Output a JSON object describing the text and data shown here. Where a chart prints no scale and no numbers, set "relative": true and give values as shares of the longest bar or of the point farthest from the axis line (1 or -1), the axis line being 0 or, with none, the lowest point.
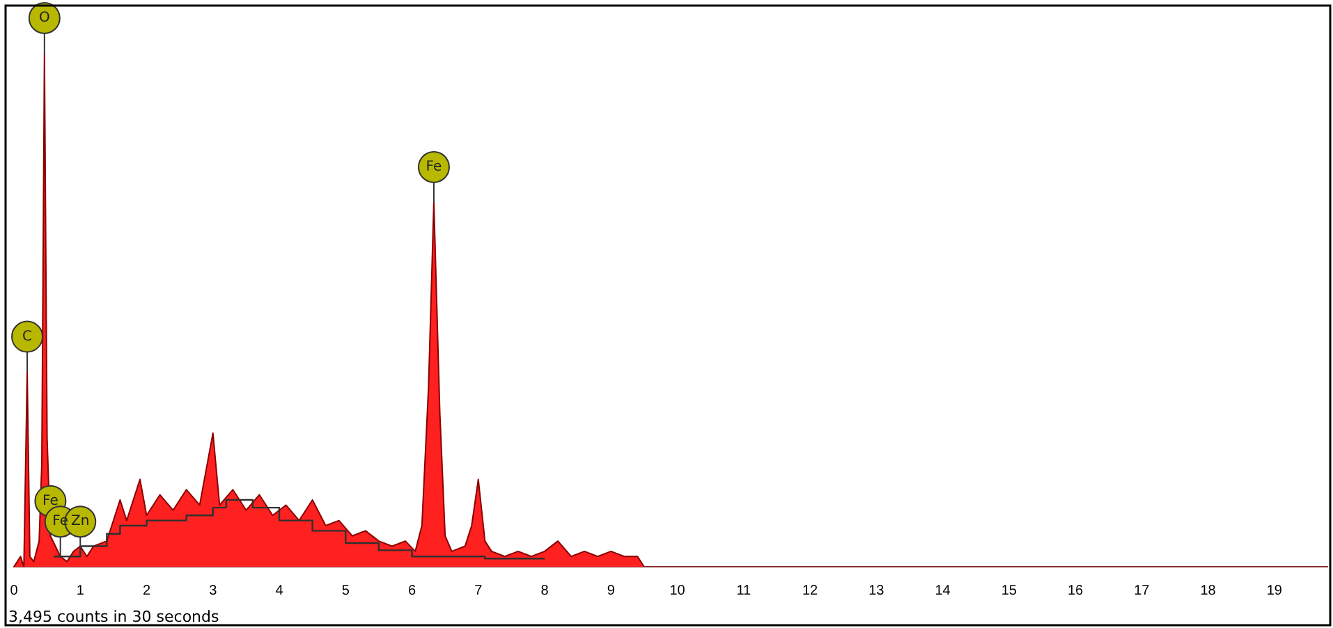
{
  "chart_data": {
    "type": "area",
    "relative": true,
    "xlim": [
      0,
      19.8
    ],
    "xticks": [
      0,
      1,
      2,
      3,
      4,
      5,
      6,
      7,
      8,
      9,
      10,
      11,
      12,
      13,
      14,
      15,
      16,
      17,
      18,
      19
    ],
    "grid": false,
    "legend": false,
    "series": [
      {
        "color": "#ff2020",
        "x": [
          0,
          0.1,
          0.15,
          0.2,
          0.24,
          0.3,
          0.38,
          0.42,
          0.46,
          0.5,
          0.55,
          0.7,
          0.8,
          0.9,
          1.0,
          1.1,
          1.2,
          1.4,
          1.6,
          1.7,
          1.9,
          2.0,
          2.2,
          2.4,
          2.6,
          2.8,
          3.0,
          3.1,
          3.3,
          3.5,
          3.7,
          3.9,
          4.1,
          4.3,
          4.5,
          4.7,
          4.9,
          5.1,
          5.3,
          5.5,
          5.7,
          5.9,
          6.05,
          6.15,
          6.25,
          6.33,
          6.42,
          6.5,
          6.6,
          6.8,
          6.9,
          7.0,
          7.1,
          7.2,
          7.4,
          7.6,
          7.8,
          8.0,
          8.2,
          8.4,
          8.6,
          8.8,
          9.0,
          9.2,
          9.4,
          9.5
        ],
        "values": [
          0,
          0.02,
          0,
          0.38,
          0.02,
          0.01,
          0.05,
          0.2,
          1.0,
          0.25,
          0.06,
          0.02,
          0.01,
          0.03,
          0.04,
          0.02,
          0.04,
          0.05,
          0.13,
          0.09,
          0.17,
          0.1,
          0.14,
          0.11,
          0.15,
          0.12,
          0.26,
          0.12,
          0.15,
          0.11,
          0.14,
          0.1,
          0.12,
          0.09,
          0.13,
          0.08,
          0.09,
          0.06,
          0.07,
          0.05,
          0.04,
          0.05,
          0.03,
          0.08,
          0.35,
          0.71,
          0.3,
          0.06,
          0.03,
          0.04,
          0.08,
          0.17,
          0.05,
          0.03,
          0.02,
          0.03,
          0.02,
          0.03,
          0.05,
          0.02,
          0.03,
          0.02,
          0.03,
          0.02,
          0.02,
          0
        ]
      },
      {
        "type": "step",
        "color": "#303030",
        "x": [
          0.6,
          1.0,
          1.4,
          1.6,
          2.0,
          2.6,
          3.0,
          3.2,
          3.6,
          4.0,
          4.5,
          5.0,
          5.5,
          6.0,
          6.7,
          7.1,
          8.0
        ],
        "values": [
          0.02,
          0.04,
          0.064,
          0.08,
          0.09,
          0.1,
          0.115,
          0.13,
          0.115,
          0.09,
          0.07,
          0.046,
          0.032,
          0.02,
          0.02,
          0.016,
          0.016
        ]
      }
    ],
    "annotations": [
      {
        "text": "O",
        "x": 0.46,
        "y": 1.0
      },
      {
        "text": "C",
        "x": 0.2,
        "y": 0.38
      },
      {
        "text": "Fe",
        "x": 6.33,
        "y": 0.71
      },
      {
        "text": "Fe",
        "x": 0.55,
        "y": 0.06
      },
      {
        "text": "Fe",
        "x": 0.7,
        "y": 0.02
      },
      {
        "text": "Zn",
        "x": 1.0,
        "y": 0.02
      },
      "3,495 counts in 30 seconds"
    ]
  }
}
